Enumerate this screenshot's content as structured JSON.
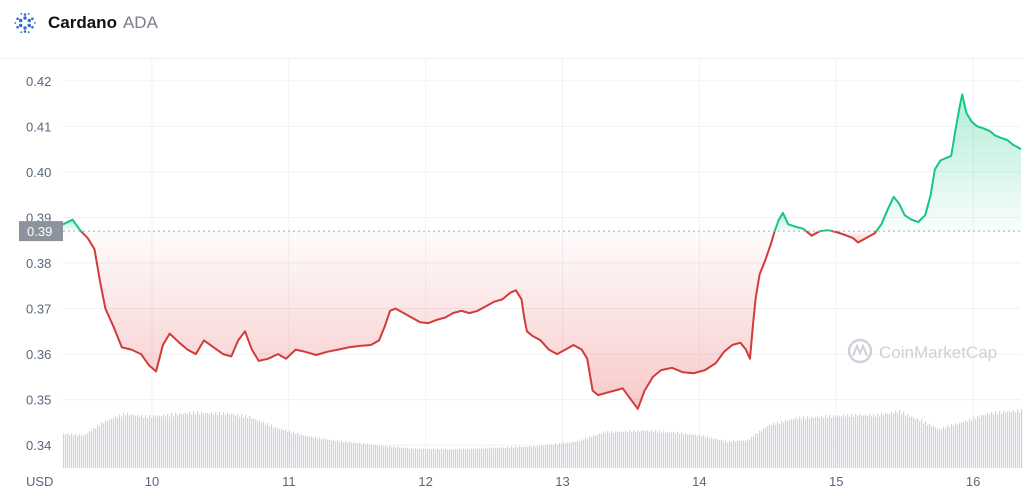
{
  "header": {
    "name": "Cardano",
    "symbol": "ADA",
    "logo_icon": "cardano-logo-icon"
  },
  "watermark": {
    "text": "CoinMarketCap",
    "icon": "coinmarketcap-logo-icon"
  },
  "colors": {
    "up": "#16c784",
    "down": "#d13b3b",
    "volume": "#cfd3da",
    "ref_label_bg": "#8d939d",
    "grid": "#eff2f5"
  },
  "chart_data": {
    "type": "area",
    "ylabel": "USD",
    "ylim": [
      0.335,
      0.425
    ],
    "yticks": [
      0.34,
      0.35,
      0.36,
      0.37,
      0.38,
      0.39,
      0.4,
      0.41,
      0.42
    ],
    "ytick_labels": [
      "0.34",
      "0.35",
      "0.36",
      "0.37",
      "0.38",
      "0.39",
      "0.40",
      "0.41",
      "0.42"
    ],
    "xlim": [
      9.35,
      16.35
    ],
    "xticks": [
      10,
      11,
      12,
      13,
      14,
      15,
      16
    ],
    "xtick_labels": [
      "10",
      "11",
      "12",
      "13",
      "14",
      "15",
      "16"
    ],
    "reference_price": 0.387,
    "reference_label": "0.39",
    "grid": true,
    "price": [
      [
        9.35,
        0.3885
      ],
      [
        9.42,
        0.3895
      ],
      [
        9.48,
        0.387
      ],
      [
        9.53,
        0.3855
      ],
      [
        9.58,
        0.383
      ],
      [
        9.62,
        0.376
      ],
      [
        9.66,
        0.37
      ],
      [
        9.72,
        0.366
      ],
      [
        9.78,
        0.3615
      ],
      [
        9.85,
        0.361
      ],
      [
        9.92,
        0.36
      ],
      [
        9.98,
        0.3575
      ],
      [
        10.03,
        0.3562
      ],
      [
        10.08,
        0.362
      ],
      [
        10.13,
        0.3645
      ],
      [
        10.2,
        0.3625
      ],
      [
        10.26,
        0.361
      ],
      [
        10.32,
        0.36
      ],
      [
        10.38,
        0.363
      ],
      [
        10.45,
        0.3615
      ],
      [
        10.52,
        0.36
      ],
      [
        10.58,
        0.3595
      ],
      [
        10.63,
        0.363
      ],
      [
        10.68,
        0.365
      ],
      [
        10.73,
        0.361
      ],
      [
        10.78,
        0.3585
      ],
      [
        10.85,
        0.359
      ],
      [
        10.92,
        0.36
      ],
      [
        10.98,
        0.359
      ],
      [
        11.05,
        0.361
      ],
      [
        11.12,
        0.3605
      ],
      [
        11.2,
        0.3598
      ],
      [
        11.28,
        0.3605
      ],
      [
        11.36,
        0.361
      ],
      [
        11.44,
        0.3615
      ],
      [
        11.52,
        0.3618
      ],
      [
        11.6,
        0.362
      ],
      [
        11.66,
        0.363
      ],
      [
        11.7,
        0.366
      ],
      [
        11.74,
        0.3695
      ],
      [
        11.78,
        0.37
      ],
      [
        11.84,
        0.369
      ],
      [
        11.9,
        0.368
      ],
      [
        11.96,
        0.367
      ],
      [
        12.02,
        0.3668
      ],
      [
        12.08,
        0.3675
      ],
      [
        12.14,
        0.368
      ],
      [
        12.2,
        0.369
      ],
      [
        12.26,
        0.3695
      ],
      [
        12.32,
        0.369
      ],
      [
        12.38,
        0.3695
      ],
      [
        12.44,
        0.3705
      ],
      [
        12.5,
        0.3715
      ],
      [
        12.56,
        0.372
      ],
      [
        12.62,
        0.3735
      ],
      [
        12.66,
        0.374
      ],
      [
        12.7,
        0.372
      ],
      [
        12.72,
        0.368
      ],
      [
        12.74,
        0.365
      ],
      [
        12.78,
        0.364
      ],
      [
        12.84,
        0.363
      ],
      [
        12.9,
        0.361
      ],
      [
        12.96,
        0.36
      ],
      [
        13.02,
        0.361
      ],
      [
        13.08,
        0.362
      ],
      [
        13.14,
        0.361
      ],
      [
        13.18,
        0.359
      ],
      [
        13.2,
        0.3555
      ],
      [
        13.22,
        0.352
      ],
      [
        13.26,
        0.351
      ],
      [
        13.32,
        0.3515
      ],
      [
        13.38,
        0.352
      ],
      [
        13.44,
        0.3525
      ],
      [
        13.5,
        0.35
      ],
      [
        13.55,
        0.348
      ],
      [
        13.6,
        0.352
      ],
      [
        13.66,
        0.355
      ],
      [
        13.72,
        0.3565
      ],
      [
        13.8,
        0.357
      ],
      [
        13.88,
        0.356
      ],
      [
        13.96,
        0.3558
      ],
      [
        14.04,
        0.3565
      ],
      [
        14.12,
        0.358
      ],
      [
        14.18,
        0.3605
      ],
      [
        14.24,
        0.362
      ],
      [
        14.3,
        0.3625
      ],
      [
        14.34,
        0.361
      ],
      [
        14.37,
        0.359
      ],
      [
        14.39,
        0.366
      ],
      [
        14.41,
        0.372
      ],
      [
        14.44,
        0.3775
      ],
      [
        14.48,
        0.3805
      ],
      [
        14.52,
        0.384
      ],
      [
        14.55,
        0.387
      ],
      [
        14.58,
        0.3895
      ],
      [
        14.61,
        0.391
      ],
      [
        14.65,
        0.3885
      ],
      [
        14.7,
        0.388
      ],
      [
        14.76,
        0.3875
      ],
      [
        14.82,
        0.386
      ],
      [
        14.88,
        0.387
      ],
      [
        14.94,
        0.3872
      ],
      [
        15.0,
        0.3868
      ],
      [
        15.06,
        0.3862
      ],
      [
        15.12,
        0.3855
      ],
      [
        15.16,
        0.3845
      ],
      [
        15.22,
        0.3855
      ],
      [
        15.28,
        0.3865
      ],
      [
        15.33,
        0.3885
      ],
      [
        15.38,
        0.392
      ],
      [
        15.42,
        0.3945
      ],
      [
        15.46,
        0.393
      ],
      [
        15.5,
        0.3905
      ],
      [
        15.55,
        0.3895
      ],
      [
        15.6,
        0.389
      ],
      [
        15.65,
        0.3905
      ],
      [
        15.69,
        0.395
      ],
      [
        15.72,
        0.4005
      ],
      [
        15.76,
        0.4025
      ],
      [
        15.8,
        0.403
      ],
      [
        15.84,
        0.4035
      ],
      [
        15.87,
        0.409
      ],
      [
        15.9,
        0.414
      ],
      [
        15.92,
        0.417
      ],
      [
        15.95,
        0.413
      ],
      [
        15.99,
        0.411
      ],
      [
        16.03,
        0.41
      ],
      [
        16.08,
        0.4095
      ],
      [
        16.12,
        0.409
      ],
      [
        16.16,
        0.408
      ],
      [
        16.2,
        0.4075
      ],
      [
        16.25,
        0.407
      ],
      [
        16.29,
        0.406
      ],
      [
        16.32,
        0.4055
      ],
      [
        16.35,
        0.405
      ]
    ],
    "volume_profile": [
      [
        9.35,
        0.44
      ],
      [
        9.5,
        0.42
      ],
      [
        9.65,
        0.6
      ],
      [
        9.8,
        0.7
      ],
      [
        9.95,
        0.66
      ],
      [
        10.1,
        0.68
      ],
      [
        10.3,
        0.71
      ],
      [
        10.55,
        0.7
      ],
      [
        10.7,
        0.66
      ],
      [
        10.9,
        0.52
      ],
      [
        11.1,
        0.42
      ],
      [
        11.3,
        0.36
      ],
      [
        11.6,
        0.3
      ],
      [
        11.9,
        0.25
      ],
      [
        12.2,
        0.24
      ],
      [
        12.5,
        0.26
      ],
      [
        12.8,
        0.28
      ],
      [
        13.1,
        0.34
      ],
      [
        13.3,
        0.46
      ],
      [
        13.6,
        0.48
      ],
      [
        13.8,
        0.46
      ],
      [
        14.0,
        0.42
      ],
      [
        14.2,
        0.34
      ],
      [
        14.35,
        0.36
      ],
      [
        14.5,
        0.55
      ],
      [
        14.7,
        0.64
      ],
      [
        14.9,
        0.66
      ],
      [
        15.1,
        0.68
      ],
      [
        15.3,
        0.68
      ],
      [
        15.45,
        0.73
      ],
      [
        15.6,
        0.62
      ],
      [
        15.75,
        0.5
      ],
      [
        15.9,
        0.58
      ],
      [
        16.1,
        0.7
      ],
      [
        16.35,
        0.74
      ]
    ]
  }
}
